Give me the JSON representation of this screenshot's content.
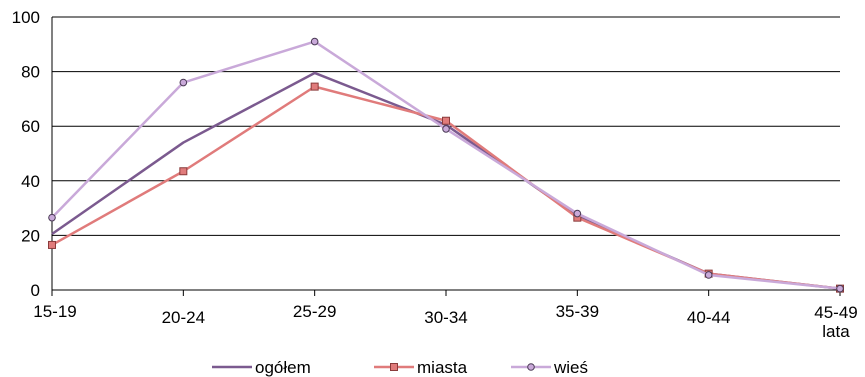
{
  "chart_data": {
    "type": "line",
    "categories": [
      "15-19",
      "20-24",
      "25-29",
      "30-34",
      "35-39",
      "40-44",
      "45-49"
    ],
    "x_unit_label": "lata",
    "ylim": [
      0,
      100
    ],
    "yticks": [
      0,
      20,
      40,
      60,
      80,
      100
    ],
    "grid": true,
    "legend_position": "bottom",
    "series": [
      {
        "name": "ogółem",
        "color": "#7b5a8f",
        "marker": "none",
        "values": [
          20.5,
          54,
          79.5,
          60.5,
          27,
          6,
          0.5
        ]
      },
      {
        "name": "miasta",
        "color": "#e07b7b",
        "marker": "square",
        "values": [
          16.5,
          43.5,
          74.5,
          62,
          26.5,
          6,
          0.5
        ]
      },
      {
        "name": "wieś",
        "color": "#c9a9d9",
        "marker": "circle",
        "values": [
          26.5,
          76,
          91,
          59,
          28,
          5.5,
          0.5
        ]
      }
    ]
  }
}
